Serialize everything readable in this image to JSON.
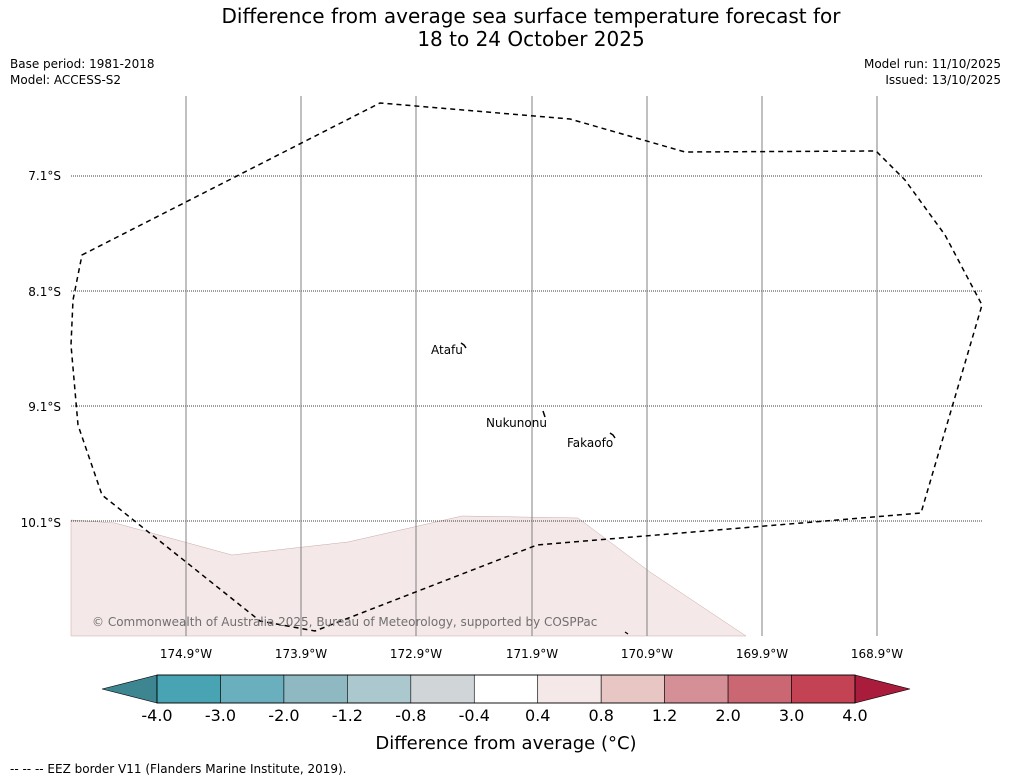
{
  "title": {
    "line1": "Difference from average sea surface temperature forecast for",
    "line2": "18 to 24 October 2025"
  },
  "meta_left": {
    "base_period": "Base period: 1981-2018",
    "model": "Model: ACCESS-S2"
  },
  "meta_right": {
    "model_run": "Model run: 11/10/2025",
    "issued": "Issued: 13/10/2025"
  },
  "map": {
    "latitude_labels": [
      "7.1°S",
      "8.1°S",
      "9.1°S",
      "10.1°S"
    ],
    "longitude_labels": [
      "174.9°W",
      "173.9°W",
      "172.9°W",
      "171.9°W",
      "170.9°W",
      "169.9°W",
      "168.9°W"
    ],
    "places": [
      {
        "name": "Atafu",
        "lon": -172.5,
        "lat": -8.55
      },
      {
        "name": "Nukunonu",
        "lon": -171.85,
        "lat": -9.17
      },
      {
        "name": "Fakaofo",
        "lon": -171.25,
        "lat": -9.36
      }
    ],
    "copyright": "© Commonwealth of Australia 2025, Bureau of Meteorology, supported by COSPPac",
    "shaded_anomaly_class": "0.4 to 0.8",
    "shaded_color": "#f4e8e8"
  },
  "colorbar": {
    "title": "Difference from average (°C)",
    "tick_labels": [
      "-4.0",
      "-3.0",
      "-2.0",
      "-1.2",
      "-0.8",
      "-0.4",
      "0.4",
      "0.8",
      "1.2",
      "2.0",
      "3.0",
      "4.0"
    ],
    "under_color": "#3e8592",
    "over_color": "#a91c3c",
    "colors": [
      "#48a3b2",
      "#6aafbd",
      "#8eb9c3",
      "#aac8cd",
      "#d0d6d8",
      "#ffffff",
      "#f4e8e8",
      "#e8c6c3",
      "#d58f96",
      "#cb6772",
      "#c34355"
    ]
  },
  "footer": "--  --  -- EEZ border V11 (Flanders Marine Institute, 2019)."
}
